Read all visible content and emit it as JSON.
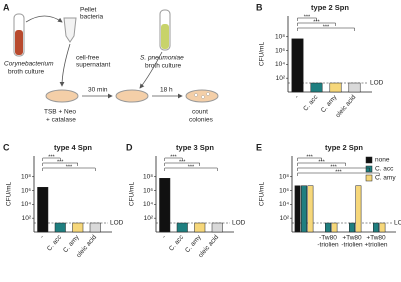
{
  "diagram": {
    "panel": "A",
    "source": [
      "Corynebacterium",
      "broth culture"
    ],
    "pellet": [
      "Pellet",
      "bacteria"
    ],
    "supernatant": [
      "cell-free",
      "supernatant"
    ],
    "spn": [
      "S. pneumoniae",
      "broth culture"
    ],
    "medium": [
      "TSB + Neo",
      "+ catalase"
    ],
    "step1": "30 min",
    "step2": "18 h",
    "count": [
      "count",
      "colonies"
    ]
  },
  "chart_data": [
    {
      "type": "bar",
      "panel": "B",
      "title": "type 2 Spn",
      "ylabel": "CFU/mL",
      "log": true,
      "categories": [
        "-",
        "C. acc",
        "C. amy",
        "oleic acid"
      ],
      "values": [
        50000000,
        20,
        20,
        20
      ],
      "colors": [
        "#111111",
        "#1f7f80",
        "#f6d77a",
        "#d9d9d9"
      ],
      "ylim": [
        1,
        100000000000
      ],
      "yticks": [
        {
          "value": 100,
          "label": "10²"
        },
        {
          "value": 10000,
          "label": "10⁴"
        },
        {
          "value": 1000000,
          "label": "10⁶"
        },
        {
          "value": 100000000,
          "label": "10⁸"
        }
      ],
      "lod": {
        "value": 20,
        "label": "LOD"
      },
      "brackets": [
        "***",
        "***",
        "***"
      ]
    },
    {
      "type": "bar",
      "panel": "C",
      "title": "type 4 Spn",
      "ylabel": "CFU/mL",
      "log": true,
      "categories": [
        "-",
        "C. acc",
        "C. amy",
        "oleic acid"
      ],
      "values": [
        3000000,
        20,
        20,
        20
      ],
      "colors": [
        "#111111",
        "#1f7f80",
        "#f6d77a",
        "#d9d9d9"
      ],
      "ylim": [
        1,
        100000000000
      ],
      "yticks": [
        {
          "value": 100,
          "label": "10²"
        },
        {
          "value": 10000,
          "label": "10⁴"
        },
        {
          "value": 1000000,
          "label": "10⁶"
        },
        {
          "value": 100000000,
          "label": "10⁸"
        }
      ],
      "lod": {
        "value": 20,
        "label": "LOD"
      },
      "brackets": [
        "***",
        "***",
        "***"
      ]
    },
    {
      "type": "bar",
      "panel": "D",
      "title": "type 3 Spn",
      "ylabel": "CFU/mL",
      "log": true,
      "categories": [
        "-",
        "C. acc",
        "C. amy",
        "oleic acid"
      ],
      "values": [
        60000000,
        20,
        20,
        20
      ],
      "colors": [
        "#111111",
        "#1f7f80",
        "#f6d77a",
        "#d9d9d9"
      ],
      "ylim": [
        1,
        100000000000
      ],
      "yticks": [
        {
          "value": 100,
          "label": "10²"
        },
        {
          "value": 10000,
          "label": "10⁴"
        },
        {
          "value": 1000000,
          "label": "10⁶"
        },
        {
          "value": 100000000,
          "label": "10⁸"
        }
      ],
      "lod": {
        "value": 20,
        "label": "LOD"
      },
      "brackets": [
        "***",
        "***",
        "***"
      ]
    },
    {
      "type": "grouped-bar",
      "panel": "E",
      "title": "type 2 Spn",
      "ylabel": "CFU/mL",
      "log": true,
      "categories": [
        null,
        [
          "-Tw80",
          "-triolien"
        ],
        [
          "+Tw80",
          "-triolien"
        ],
        [
          "+Tw80",
          "+triolien"
        ]
      ],
      "series": [
        {
          "name": "none",
          "color": "#111111",
          "values": [
            5000000,
            null,
            null,
            null
          ]
        },
        {
          "name": "C. acc",
          "color": "#1f7f80",
          "values": [
            5000000,
            20,
            20,
            20
          ]
        },
        {
          "name": "C. amy",
          "color": "#f6d77a",
          "values": [
            5000000,
            20,
            5000000,
            20
          ]
        }
      ],
      "ylim": [
        1,
        100000000000
      ],
      "yticks": [
        {
          "value": 100,
          "label": "10²"
        },
        {
          "value": 10000,
          "label": "10⁴"
        },
        {
          "value": 1000000,
          "label": "10⁶"
        },
        {
          "value": 100000000,
          "label": "10⁸"
        }
      ],
      "lod": {
        "value": 20,
        "label": "LOD"
      },
      "brackets": [
        "***",
        "***",
        "***",
        "***"
      ]
    }
  ]
}
